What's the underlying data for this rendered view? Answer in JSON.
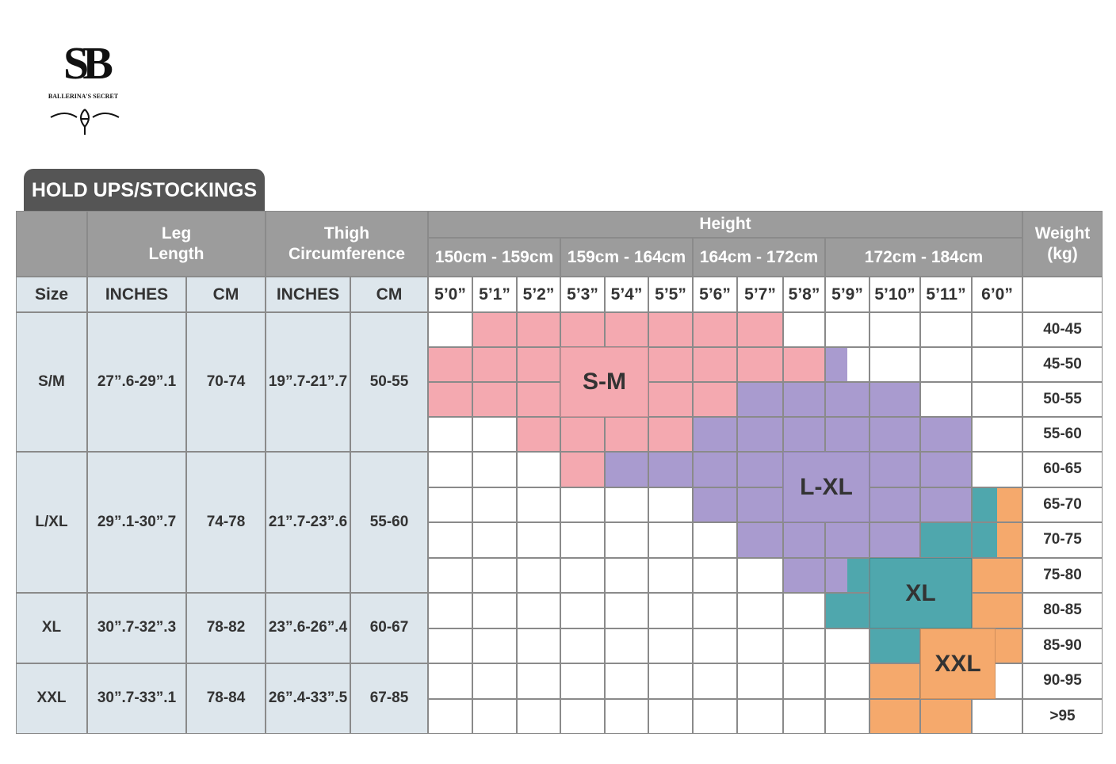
{
  "brand": {
    "monogram": "SB",
    "name": "BALLERINA'S SECRET"
  },
  "title": "HOLD UPS/STOCKINGS",
  "header": {
    "leg_length": "Leg\nLength",
    "thigh": "Thigh\nCircumference",
    "height": "Height",
    "weight": "Weight\n(kg)",
    "size": "Size",
    "units": [
      "INCHES",
      "CM",
      "INCHES",
      "CM"
    ],
    "height_ranges": [
      "150cm - 159cm",
      "159cm - 164cm",
      "164cm - 172cm",
      "172cm - 184cm"
    ],
    "heights": [
      "5’0”",
      "5’1”",
      "5’2”",
      "5’3”",
      "5’4”",
      "5’5”",
      "5’6”",
      "5’7”",
      "5’8”",
      "5’9”",
      "5’10”",
      "5’11”",
      "6’0”"
    ]
  },
  "sizes": [
    {
      "size": "S/M",
      "leg_in": "27”.6-29”.1",
      "leg_cm": "70-74",
      "thigh_in": "19”.7-21”.7",
      "thigh_cm": "50-55"
    },
    {
      "size": "L/XL",
      "leg_in": "29”.1-30”.7",
      "leg_cm": "74-78",
      "thigh_in": "21”.7-23”.6",
      "thigh_cm": "55-60"
    },
    {
      "size": "XL",
      "leg_in": "30”.7-32”.3",
      "leg_cm": "78-82",
      "thigh_in": "23”.6-26”.4",
      "thigh_cm": "60-67"
    },
    {
      "size": "XXL",
      "leg_in": "30”.7-33”.1",
      "leg_cm": "78-84",
      "thigh_in": "26”.4-33”.5",
      "thigh_cm": "67-85"
    }
  ],
  "weights": [
    "40-45",
    "45-50",
    "50-55",
    "55-60",
    "60-65",
    "65-70",
    "70-75",
    "75-80",
    "80-85",
    "85-90",
    "90-95",
    ">95"
  ],
  "zones": [
    {
      "label": "S-M",
      "color": "#f4a9b0"
    },
    {
      "label": "L-XL",
      "color": "#a99bcf"
    },
    {
      "label": "XL",
      "color": "#4fa7ad"
    },
    {
      "label": "XXL",
      "color": "#f5a96c"
    }
  ],
  "cells": [
    [
      null,
      "#f4a9b0",
      "#f4a9b0",
      "#f4a9b0",
      "#f4a9b0",
      "#f4a9b0",
      "#f4a9b0",
      "#f4a9b0",
      null,
      null,
      null,
      null,
      null
    ],
    [
      "#f4a9b0",
      "#f4a9b0",
      "#f4a9b0",
      "#f4a9b0",
      "#f4a9b0",
      "#f4a9b0",
      "#f4a9b0",
      "#f4a9b0",
      "#f4a9b0",
      [
        "#a99bcf",
        null
      ],
      null,
      null,
      null
    ],
    [
      "#f4a9b0",
      "#f4a9b0",
      "#f4a9b0",
      "#f4a9b0",
      "#f4a9b0",
      "#f4a9b0",
      "#f4a9b0",
      "#a99bcf",
      "#a99bcf",
      "#a99bcf",
      "#a99bcf",
      null,
      null
    ],
    [
      null,
      null,
      "#f4a9b0",
      "#f4a9b0",
      "#f4a9b0",
      "#f4a9b0",
      "#a99bcf",
      "#a99bcf",
      "#a99bcf",
      "#a99bcf",
      "#a99bcf",
      "#a99bcf",
      null
    ],
    [
      null,
      null,
      null,
      "#f4a9b0",
      "#a99bcf",
      "#a99bcf",
      "#a99bcf",
      "#a99bcf",
      "#a99bcf",
      "#a99bcf",
      "#a99bcf",
      "#a99bcf",
      null
    ],
    [
      null,
      null,
      null,
      null,
      null,
      null,
      "#a99bcf",
      "#a99bcf",
      "#a99bcf",
      "#a99bcf",
      "#a99bcf",
      "#a99bcf",
      [
        "#4fa7ad",
        "#f5a96c"
      ]
    ],
    [
      null,
      null,
      null,
      null,
      null,
      null,
      null,
      "#a99bcf",
      "#a99bcf",
      "#a99bcf",
      "#a99bcf",
      "#4fa7ad",
      [
        "#4fa7ad",
        "#f5a96c"
      ]
    ],
    [
      null,
      null,
      null,
      null,
      null,
      null,
      null,
      null,
      "#a99bcf",
      [
        "#a99bcf",
        "#4fa7ad"
      ],
      "#4fa7ad",
      "#4fa7ad",
      "#f5a96c"
    ],
    [
      null,
      null,
      null,
      null,
      null,
      null,
      null,
      null,
      null,
      "#4fa7ad",
      "#4fa7ad",
      "#4fa7ad",
      "#f5a96c"
    ],
    [
      null,
      null,
      null,
      null,
      null,
      null,
      null,
      null,
      null,
      null,
      "#4fa7ad",
      "#f5a96c",
      "#f5a96c"
    ],
    [
      null,
      null,
      null,
      null,
      null,
      null,
      null,
      null,
      null,
      null,
      "#f5a96c",
      "#f5a96c",
      null
    ],
    [
      null,
      null,
      null,
      null,
      null,
      null,
      null,
      null,
      null,
      null,
      "#f5a96c",
      "#f5a96c",
      null
    ]
  ]
}
